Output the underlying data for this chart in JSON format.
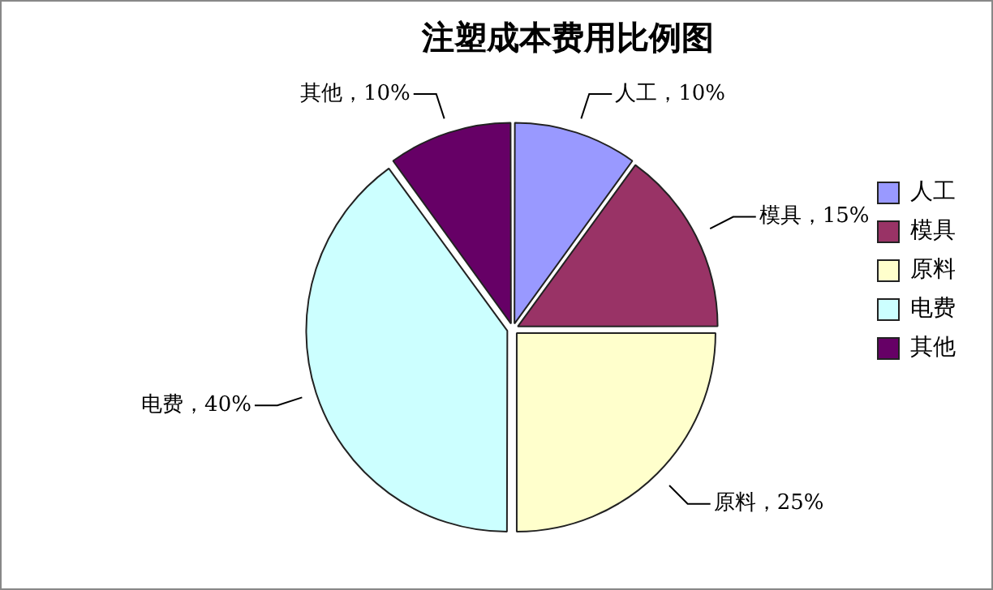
{
  "chart_data": {
    "type": "pie",
    "title": "注塑成本费用比例图",
    "categories": [
      "人工",
      "模具",
      "原料",
      "电费",
      "其他"
    ],
    "values": [
      10,
      15,
      25,
      40,
      10
    ],
    "colors": [
      "#9999ff",
      "#993366",
      "#ffffcc",
      "#ccffff",
      "#660066"
    ],
    "value_labels": [
      "人工，10%",
      "模具，15%",
      "原料，25%",
      "电费，40%",
      "其他，10%"
    ],
    "legend": "right"
  }
}
